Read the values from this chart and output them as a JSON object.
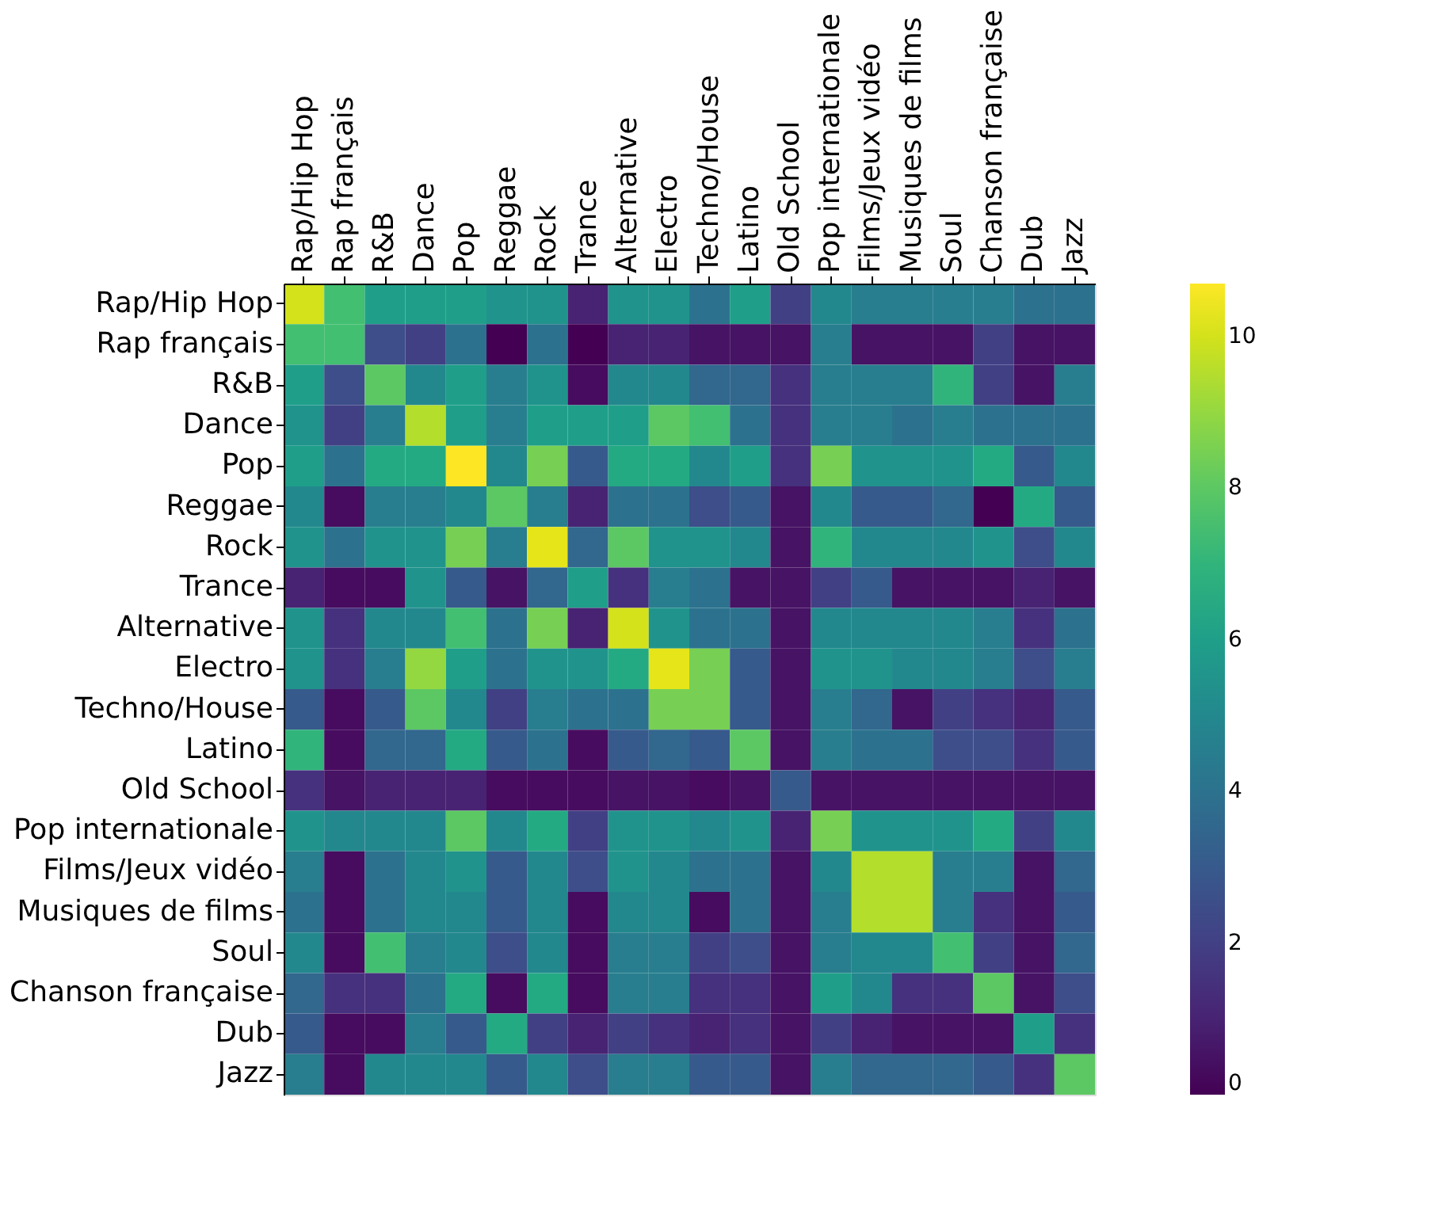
{
  "chart_data": {
    "type": "heatmap",
    "categories": [
      "Rap/Hip Hop",
      "Rap français",
      "R&B",
      "Dance",
      "Pop",
      "Reggae",
      "Rock",
      "Trance",
      "Alternative",
      "Electro",
      "Techno/House",
      "Latino",
      "Old School",
      "Pop internationale",
      "Films/Jeux vidéo",
      "Musiques de films",
      "Soul",
      "Chanson française",
      "Dub",
      "Jazz"
    ],
    "y_categories": [
      "Rap/Hip Hop",
      "Rap français",
      "R&B",
      "Dance",
      "Pop",
      "Reggae",
      "Rock",
      "Trance",
      "Alternative",
      "Electro",
      "Techno/House",
      "Latino",
      "Old School",
      "Pop internationale",
      "Films/Jeux vidéo",
      "Musiques de films",
      "Soul",
      "Chanson française",
      "Dub",
      "Jazz"
    ],
    "cells": [
      [
        10,
        7.5,
        6,
        6,
        6,
        5.5,
        5.5,
        1,
        5.5,
        5.5,
        4,
        6,
        2,
        5,
        4.5,
        4.5,
        4.5,
        4.5,
        4,
        4
      ],
      [
        7.5,
        7.5,
        2.5,
        2,
        4,
        0,
        4,
        0,
        1,
        1,
        0.5,
        0.5,
        0.5,
        4.5,
        0.5,
        0.5,
        0.5,
        2,
        0.5,
        0.5
      ],
      [
        6,
        2.5,
        8,
        5,
        6,
        4.5,
        5.5,
        0.3,
        5,
        5,
        3.5,
        3.5,
        1.5,
        4.5,
        4.5,
        4.5,
        7,
        2,
        0.5,
        4.5
      ],
      [
        5.5,
        2,
        4.5,
        9.5,
        6,
        4.5,
        6,
        6,
        6,
        8,
        7.5,
        4,
        1.5,
        4.5,
        4.5,
        4,
        4.5,
        4,
        4,
        4
      ],
      [
        6,
        4,
        6.5,
        6.5,
        10.7,
        5,
        8.5,
        3,
        6.5,
        6.5,
        5,
        6,
        1.5,
        8.5,
        5.5,
        5.5,
        5.5,
        6.5,
        3,
        5
      ],
      [
        5,
        0.3,
        4.5,
        4.5,
        5,
        8,
        4.5,
        1,
        4,
        4,
        2.5,
        3,
        0.5,
        5,
        3,
        3,
        3.5,
        0,
        6.5,
        3
      ],
      [
        5.5,
        4,
        5.5,
        5.5,
        8.5,
        4.5,
        10.3,
        3.5,
        8,
        5.5,
        5.5,
        5,
        0.5,
        7,
        5,
        5,
        5,
        5.5,
        2.5,
        5
      ],
      [
        1,
        0.3,
        0.3,
        5.5,
        3,
        0.5,
        3.5,
        6,
        1.5,
        4.5,
        4,
        0.5,
        0.5,
        2,
        3,
        0.5,
        0.5,
        0.5,
        1,
        0.5
      ],
      [
        5.5,
        1.5,
        5,
        5,
        7.5,
        4,
        8.5,
        1,
        10,
        5.5,
        4,
        4,
        0.5,
        5,
        5,
        5,
        5,
        4.5,
        1.5,
        4
      ],
      [
        5.5,
        1.5,
        4.5,
        9,
        6,
        4,
        5.5,
        5.5,
        6.5,
        10.3,
        8.5,
        3,
        0.5,
        5.5,
        5.5,
        5,
        5,
        4.5,
        2.5,
        4.5
      ],
      [
        3,
        0.3,
        3,
        8,
        5,
        2,
        4.5,
        4,
        4,
        8.5,
        8.5,
        3,
        0.5,
        4.5,
        3.5,
        0.5,
        2,
        1.5,
        1,
        3
      ],
      [
        7,
        0.3,
        3.5,
        3.5,
        6.5,
        3,
        4,
        0.3,
        3,
        3.5,
        3,
        8,
        0.5,
        4.5,
        4,
        4,
        2.5,
        2.5,
        1.5,
        3
      ],
      [
        1.5,
        0.5,
        1,
        1,
        1,
        0.3,
        0.3,
        0.3,
        0.5,
        0.5,
        0.3,
        0.5,
        3,
        0.5,
        0.5,
        0.5,
        0.5,
        0.5,
        0.5,
        0.5
      ],
      [
        5.5,
        5,
        5,
        5,
        8,
        5,
        6.5,
        2,
        5.5,
        5.5,
        5,
        5.5,
        1,
        8.5,
        5.5,
        5.5,
        5.5,
        6.5,
        2,
        5
      ],
      [
        4.5,
        0.3,
        4,
        5,
        5.5,
        3,
        5,
        2.5,
        5.5,
        5,
        4,
        4,
        0.5,
        5,
        9.5,
        9.5,
        4.5,
        4.5,
        0.5,
        3.5
      ],
      [
        4,
        0.3,
        4,
        5,
        5,
        3,
        5,
        0.3,
        5,
        5,
        0.3,
        4,
        0.5,
        4.5,
        9.5,
        9.5,
        4.5,
        1.5,
        0.5,
        3
      ],
      [
        5,
        0.3,
        7.5,
        4.5,
        5,
        2.5,
        5,
        0.3,
        4.5,
        4.5,
        2,
        2.5,
        0.5,
        4.5,
        5,
        5,
        7.5,
        2,
        0.5,
        3.5
      ],
      [
        3.5,
        1.5,
        1.5,
        4,
        6.5,
        0.3,
        6.5,
        0.3,
        4.5,
        4.5,
        1.5,
        1.5,
        0.5,
        6,
        5,
        1.5,
        1.5,
        8,
        0.5,
        2.5
      ],
      [
        3,
        0.3,
        0.3,
        4.5,
        3,
        6.5,
        2,
        1,
        2,
        1.5,
        1,
        1.5,
        0.5,
        2,
        1,
        0.5,
        0.5,
        0.5,
        6,
        1.5
      ],
      [
        4.5,
        0.3,
        5,
        5,
        5,
        3,
        5,
        2.5,
        4.5,
        4.5,
        3,
        3,
        0.5,
        4.5,
        3.5,
        3.5,
        3.5,
        3,
        1.5,
        8
      ]
    ],
    "clim": [
      0,
      10.7
    ],
    "cticks": [
      0,
      2,
      4,
      6,
      8,
      10
    ]
  }
}
